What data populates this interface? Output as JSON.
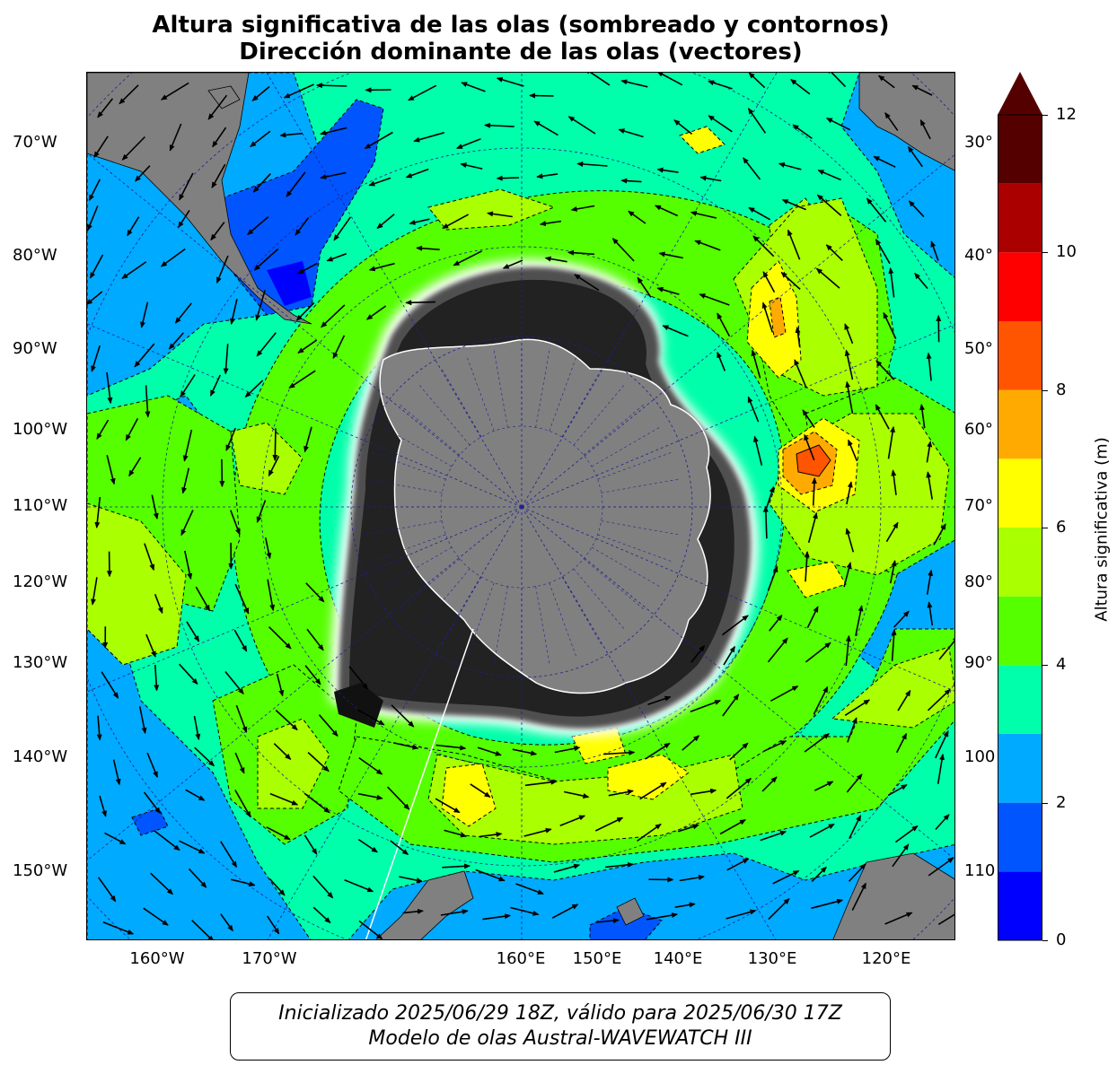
{
  "header": {
    "title_line1": "Altura significativa de las olas (sombreado y contornos)",
    "title_line2": "Dirección dominante de las olas (vectores)"
  },
  "map": {
    "projection": "polar stereographic (south pole)",
    "colors": {
      "land": "#808080",
      "grid": "#1f1f8f"
    },
    "lon_labels_left": [
      "70°W",
      "80°W",
      "90°W",
      "100°W",
      "110°W",
      "120°W",
      "130°W",
      "140°W",
      "150°W"
    ],
    "lon_labels_right": [
      "30°",
      "40°",
      "50°",
      "60°",
      "70°",
      "80°",
      "90°",
      "100",
      "110"
    ],
    "lon_labels_bottom": [
      "160°W",
      "170°W",
      "160°E",
      "150°E",
      "140°E",
      "130°E",
      "120°E"
    ]
  },
  "colorbar": {
    "label": "Altura significativa (m)",
    "ticks": [
      "0",
      "2",
      "4",
      "6",
      "8",
      "10",
      "12"
    ],
    "range": [
      0,
      12
    ],
    "extend": "max",
    "bins": [
      {
        "from": 0,
        "to": 1,
        "color": "#0000ff"
      },
      {
        "from": 1,
        "to": 2,
        "color": "#0055ff"
      },
      {
        "from": 2,
        "to": 3,
        "color": "#00aaff"
      },
      {
        "from": 3,
        "to": 4,
        "color": "#00ffaa"
      },
      {
        "from": 4,
        "to": 5,
        "color": "#55ff00"
      },
      {
        "from": 5,
        "to": 6,
        "color": "#aaff00"
      },
      {
        "from": 6,
        "to": 7,
        "color": "#ffff00"
      },
      {
        "from": 7,
        "to": 8,
        "color": "#ffaa00"
      },
      {
        "from": 8,
        "to": 9,
        "color": "#ff5500"
      },
      {
        "from": 9,
        "to": 10,
        "color": "#ff0000"
      },
      {
        "from": 10,
        "to": 11,
        "color": "#aa0000"
      },
      {
        "from": 11,
        "to": 12,
        "color": "#550000"
      }
    ]
  },
  "footer": {
    "line1": "Inicializado 2025/06/29 18Z, válido para 2025/06/30 17Z",
    "line2": "Modelo de olas Austral-WAVEWATCH III"
  }
}
